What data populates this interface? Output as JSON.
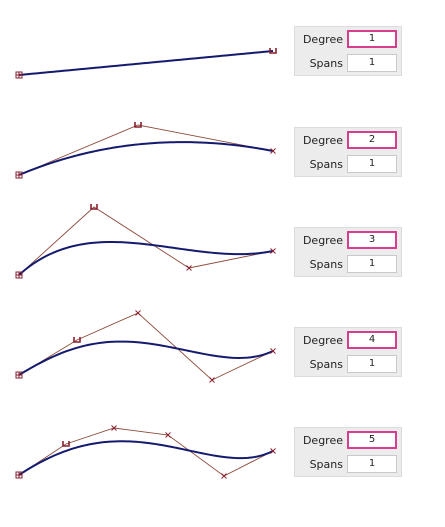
{
  "colors": {
    "curve": "#141b6e",
    "polygon": "#8e4b3a",
    "marker": "#8a1f2f",
    "focus_border": "#d63f8e"
  },
  "rows": [
    {
      "degree_label": "Degree",
      "degree_value": "1",
      "spans_label": "Spans",
      "spans_value": "1",
      "control_points": [
        [
          19,
          75
        ],
        [
          273,
          51
        ]
      ]
    },
    {
      "degree_label": "Degree",
      "degree_value": "2",
      "spans_label": "Spans",
      "spans_value": "1",
      "control_points": [
        [
          19,
          175
        ],
        [
          138,
          125
        ],
        [
          273,
          151
        ]
      ]
    },
    {
      "degree_label": "Degree",
      "degree_value": "3",
      "spans_label": "Spans",
      "spans_value": "1",
      "control_points": [
        [
          19,
          275
        ],
        [
          94,
          207
        ],
        [
          189,
          268
        ],
        [
          273,
          251
        ]
      ]
    },
    {
      "degree_label": "Degree",
      "degree_value": "4",
      "spans_label": "Spans",
      "spans_value": "1",
      "control_points": [
        [
          19,
          375
        ],
        [
          77,
          340
        ],
        [
          138,
          313
        ],
        [
          212,
          380
        ],
        [
          273,
          351
        ]
      ]
    },
    {
      "degree_label": "Degree",
      "degree_value": "5",
      "spans_label": "Spans",
      "spans_value": "1",
      "control_points": [
        [
          19,
          475
        ],
        [
          66,
          444
        ],
        [
          114,
          428
        ],
        [
          168,
          435
        ],
        [
          224,
          476
        ],
        [
          273,
          451
        ]
      ]
    }
  ]
}
